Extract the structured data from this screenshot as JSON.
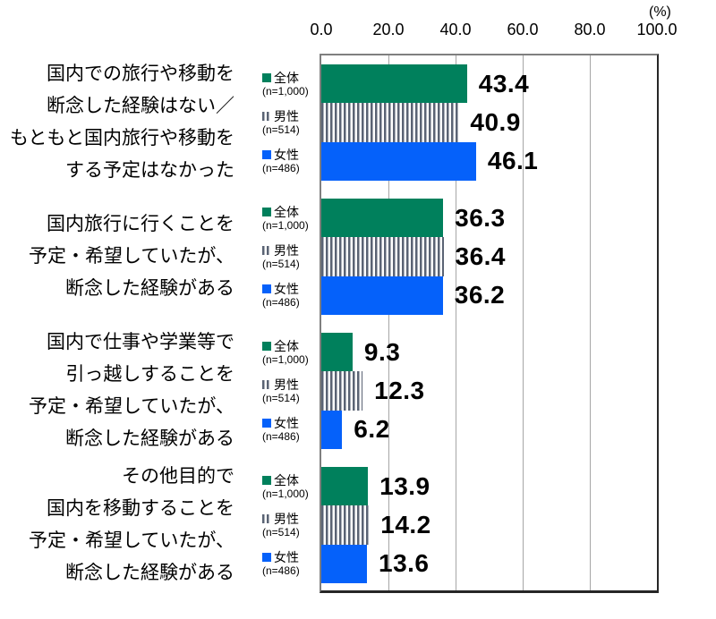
{
  "chart": {
    "unit_label": "(%)",
    "axis_ticks": [
      "0.0",
      "20.0",
      "40.0",
      "60.0",
      "80.0",
      "100.0"
    ]
  },
  "colors": {
    "series_zentai": "#00805c",
    "series_dansei_stripe": "#5a6374",
    "series_josei": "#0561fa",
    "gridline": "#a6a6a6",
    "border_light": "#7f7f7f",
    "border_dark": "#262626"
  },
  "chart_data": {
    "type": "bar",
    "orientation": "horizontal",
    "unit": "%",
    "xlim": [
      0,
      100
    ],
    "x_ticks": [
      0.0,
      20.0,
      40.0,
      60.0,
      80.0,
      100.0
    ],
    "grid": true,
    "legend_position": "left-of-bars-per-group",
    "categories": [
      "国内での旅行や移動を断念した経験はない／もともと国内旅行や移動をする予定はなかった",
      "国内旅行に行くことを予定・希望していたが、断念した経験がある",
      "国内で仕事や学業等で引っ越しすることを予定・希望していたが、断念した経験がある",
      "その他目的で国内を移動することを予定・希望していたが、断念した経験がある"
    ],
    "category_lines": [
      [
        "国内での旅行や移動を",
        "断念した経験はない／",
        "もともと国内旅行や移動を",
        "する予定はなかった"
      ],
      [
        "国内旅行に行くことを",
        "予定・希望していたが、",
        "断念した経験がある"
      ],
      [
        "国内で仕事や学業等で",
        "引っ越しすることを",
        "予定・希望していたが、",
        "断念した経験がある"
      ],
      [
        "その他目的で",
        "国内を移動することを",
        "予定・希望していたが、",
        "断念した経験がある"
      ]
    ],
    "series": [
      {
        "name": "全体",
        "n_label": "(n=1,000)",
        "pattern": "solid",
        "color": "#00805c",
        "values": [
          43.4,
          36.3,
          9.3,
          13.9
        ]
      },
      {
        "name": "男性",
        "n_label": "(n=514)",
        "pattern": "vertical-stripes",
        "color": "#5a6374",
        "values": [
          40.9,
          36.4,
          12.3,
          14.2
        ]
      },
      {
        "name": "女性",
        "n_label": "(n=486)",
        "pattern": "solid",
        "color": "#0561fa",
        "values": [
          46.1,
          36.2,
          6.2,
          13.6
        ]
      }
    ]
  }
}
